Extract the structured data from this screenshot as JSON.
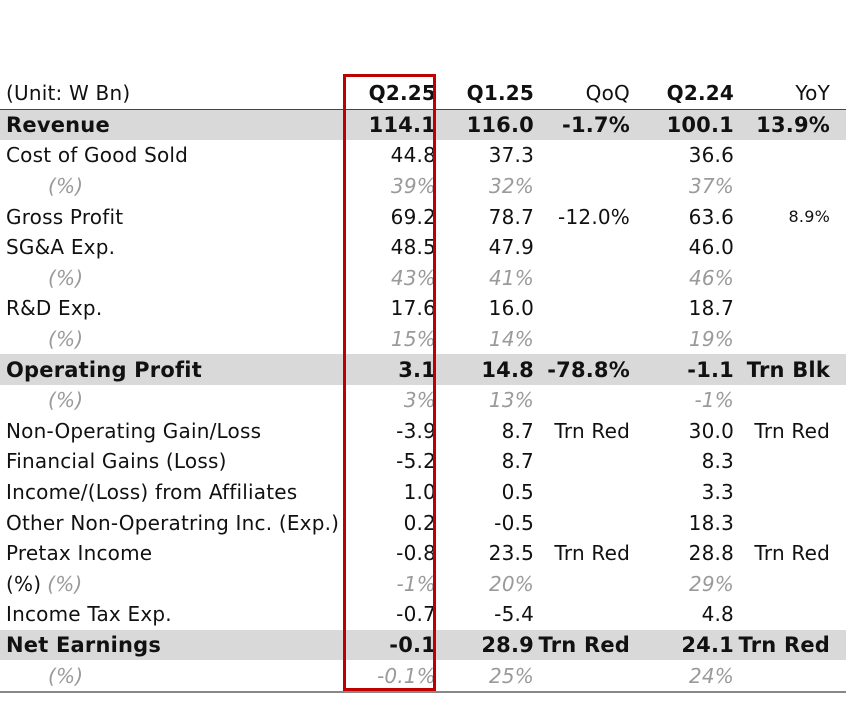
{
  "table": {
    "header": {
      "unit": "(Unit: W Bn)",
      "q225": "Q2.25",
      "q125": "Q1.25",
      "qoq": "QoQ",
      "q224": "Q2.24",
      "yoy": "YoY"
    },
    "rows": [
      {
        "label": "Revenue",
        "q225": "114.1",
        "q125": "116.0",
        "qoq": "-1.7%",
        "q224": "100.1",
        "yoy": "13.9%"
      },
      {
        "label": "Cost of Good Sold",
        "q225": "44.8",
        "q125": "37.3",
        "qoq": "",
        "q224": "36.6",
        "yoy": ""
      },
      {
        "label": "(%)",
        "q225": "39%",
        "q125": "32%",
        "qoq": "",
        "q224": "37%",
        "yoy": ""
      },
      {
        "label": "Gross Profit",
        "q225": "69.2",
        "q125": "78.7",
        "qoq": "-12.0%",
        "q224": "63.6",
        "yoy": "8.9%"
      },
      {
        "label": "SG&A Exp.",
        "q225": "48.5",
        "q125": "47.9",
        "qoq": "",
        "q224": "46.0",
        "yoy": ""
      },
      {
        "label": "(%)",
        "q225": "43%",
        "q125": "41%",
        "qoq": "",
        "q224": "46%",
        "yoy": ""
      },
      {
        "label": "R&D Exp.",
        "q225": "17.6",
        "q125": "16.0",
        "qoq": "",
        "q224": "18.7",
        "yoy": ""
      },
      {
        "label": "(%)",
        "q225": "15%",
        "q125": "14%",
        "qoq": "",
        "q224": "19%",
        "yoy": ""
      },
      {
        "label": "Operating Profit",
        "q225": "3.1",
        "q125": "14.8",
        "qoq": "-78.8%",
        "q224": "-1.1",
        "yoy": "Trn Blk"
      },
      {
        "label": "(%)",
        "q225": "3%",
        "q125": "13%",
        "qoq": "",
        "q224": "-1%",
        "yoy": ""
      },
      {
        "label": "Non-Operating Gain/Loss",
        "q225": "-3.9",
        "q125": "8.7",
        "qoq": "Trn Red",
        "q224": "30.0",
        "yoy": "Trn Red"
      },
      {
        "label": "Financial Gains (Loss)",
        "q225": "-5.2",
        "q125": "8.7",
        "qoq": "",
        "q224": "8.3",
        "yoy": ""
      },
      {
        "label": "Income/(Loss) from Affiliates",
        "q225": "1.0",
        "q125": "0.5",
        "qoq": "",
        "q224": "3.3",
        "yoy": ""
      },
      {
        "label": "Other Non-Operatring Inc. (Exp.)",
        "q225": "0.2",
        "q125": "-0.5",
        "qoq": "",
        "q224": "18.3",
        "yoy": ""
      },
      {
        "label": "Pretax Income",
        "q225": "-0.8",
        "q125": "23.5",
        "qoq": "Trn Red",
        "q224": "28.8",
        "yoy": "Trn Red"
      },
      {
        "label_prefix": "(%)",
        "label": "(%)",
        "q225": "-1%",
        "q125": "20%",
        "qoq": "",
        "q224": "29%",
        "yoy": ""
      },
      {
        "label": "Income Tax Exp.",
        "q225": "-0.7",
        "q125": "-5.4",
        "qoq": "",
        "q224": "4.8",
        "yoy": ""
      },
      {
        "label": "Net Earnings",
        "q225": "-0.1",
        "q125": "28.9",
        "qoq": "Trn Red",
        "q224": "24.1",
        "yoy": "Trn Red"
      },
      {
        "label": "(%)",
        "q225": "-0.1%",
        "q125": "25%",
        "qoq": "",
        "q224": "24%",
        "yoy": ""
      }
    ]
  },
  "colors": {
    "highlight_box": "#c00000",
    "shaded_row": "#d9d9d9",
    "percent_text": "#9a9a9a"
  }
}
